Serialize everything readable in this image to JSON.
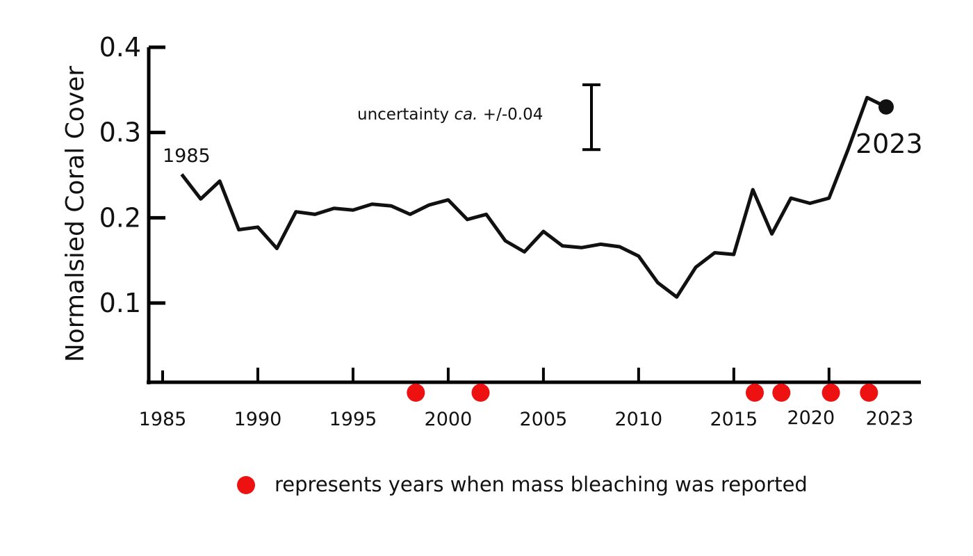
{
  "chart_data": {
    "type": "line",
    "title": "",
    "xlabel": "",
    "ylabel": "Normalsied Coral Cover",
    "xlim": [
      1984.2,
      1987.5
    ],
    "ylim": [
      0,
      0.4
    ],
    "yticks": [
      "0.4",
      "0.3",
      "0.2",
      "0.1"
    ],
    "xticks": [
      "1985",
      "1990",
      "1995",
      "2000",
      "2005",
      "2010",
      "2015",
      "2020",
      "2023"
    ],
    "series": [
      {
        "x": [
          1986,
          1987,
          1988,
          1989,
          1990,
          1991,
          1992,
          1993,
          1994,
          1995,
          1996,
          1997,
          1998,
          1999,
          2000,
          2001,
          2002,
          2003,
          2004,
          2005,
          2006,
          2007,
          2008,
          2009,
          2010,
          2011,
          2012,
          2013,
          2014,
          2015,
          2016,
          2017,
          2018,
          2019,
          2020,
          2021,
          2022,
          2023
        ],
        "y": [
          0.251,
          0.222,
          0.243,
          0.186,
          0.189,
          0.164,
          0.207,
          0.204,
          0.211,
          0.209,
          0.216,
          0.214,
          0.204,
          0.215,
          0.221,
          0.198,
          0.204,
          0.173,
          0.16,
          0.184,
          0.167,
          0.165,
          0.169,
          0.166,
          0.155,
          0.124,
          0.107,
          0.142,
          0.159,
          0.157,
          0.233,
          0.181,
          0.223,
          0.217,
          0.223,
          0.28,
          0.341,
          0.33
        ]
      }
    ],
    "start_label": "1985",
    "end_label": "2023",
    "uncertainty": {
      "label_prefix": "uncertainty ",
      "label_italic": "ca.",
      "label_suffix": " +/-0.04",
      "half_width": 0.038
    },
    "bleaching_years": [
      1998.3,
      2001.7,
      2016.1,
      2017.5,
      2020.1,
      2022.1
    ],
    "legend_text": "represents years when mass bleaching was reported",
    "colors": {
      "line": "#111111",
      "bleaching": "#ee1111",
      "axis": "#000000"
    }
  }
}
